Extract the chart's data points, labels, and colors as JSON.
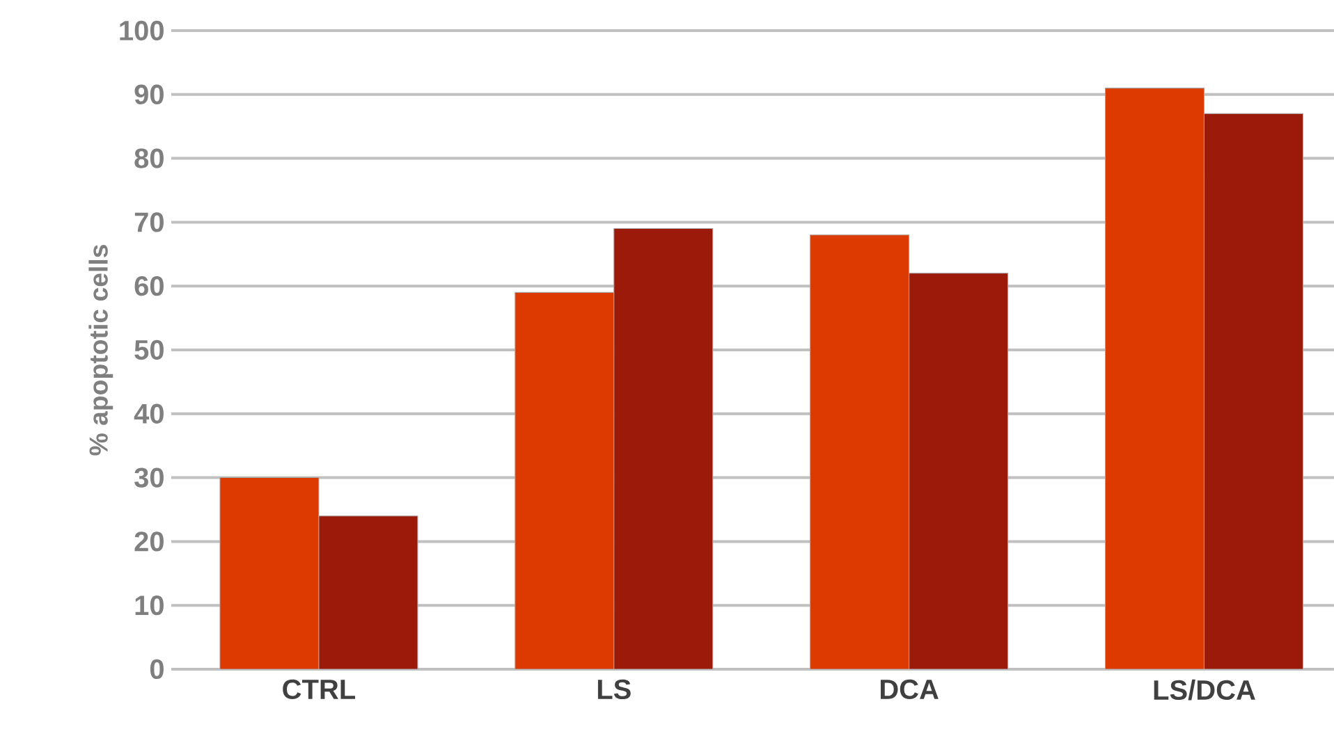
{
  "chart_data": {
    "type": "bar",
    "ylabel": "% apoptotic cells",
    "categories": [
      "CTRL",
      "LS",
      "DCA",
      "LS/DCA"
    ],
    "series": [
      {
        "color": "#dc3a00",
        "values": [
          30,
          59,
          68,
          91
        ]
      },
      {
        "color": "#9c1a0a",
        "values": [
          24,
          69,
          62,
          87
        ]
      }
    ],
    "ylim": [
      0,
      100
    ],
    "yticks": [
      0,
      10,
      20,
      30,
      40,
      50,
      60,
      70,
      80,
      90,
      100
    ],
    "grid": "y"
  }
}
